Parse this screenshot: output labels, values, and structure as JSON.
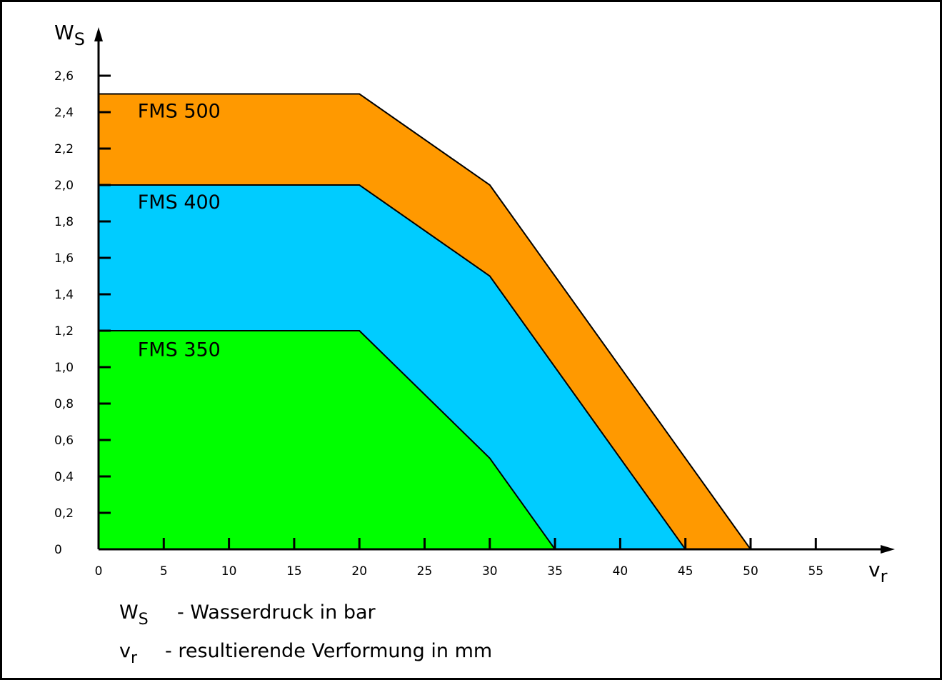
{
  "chart_data": {
    "type": "area",
    "x_axis": {
      "label": "v",
      "label_sub": "r",
      "range": [
        0,
        60
      ],
      "ticks": [
        0,
        5,
        10,
        15,
        20,
        25,
        30,
        35,
        40,
        45,
        50,
        55
      ]
    },
    "y_axis": {
      "label": "W",
      "label_sub": "S",
      "range": [
        0,
        2.7
      ],
      "ticks": [
        "0",
        "0,2",
        "0,4",
        "0,6",
        "0,8",
        "1,0",
        "1,2",
        "1,4",
        "1,6",
        "1,8",
        "2,0",
        "2,2",
        "2,4",
        "2,6"
      ],
      "tick_values": [
        0,
        0.2,
        0.4,
        0.6,
        0.8,
        1.0,
        1.2,
        1.4,
        1.6,
        1.8,
        2.0,
        2.2,
        2.4,
        2.6
      ]
    },
    "grid": false,
    "series": [
      {
        "name": "FMS 500",
        "color": "#ff9900",
        "points": [
          [
            0,
            2.5
          ],
          [
            20,
            2.5
          ],
          [
            30,
            2.0
          ],
          [
            50,
            0
          ]
        ],
        "label_at": [
          3,
          2.37
        ]
      },
      {
        "name": "FMS 400",
        "color": "#00ccff",
        "points": [
          [
            0,
            2.0
          ],
          [
            20,
            2.0
          ],
          [
            30,
            1.5
          ],
          [
            45,
            0
          ]
        ],
        "label_at": [
          3,
          1.87
        ]
      },
      {
        "name": "FMS 350",
        "color": "#00ff00",
        "points": [
          [
            0,
            1.2
          ],
          [
            20,
            1.2
          ],
          [
            30,
            0.5
          ],
          [
            35,
            0
          ]
        ],
        "label_at": [
          3,
          1.06
        ]
      }
    ]
  },
  "legend": [
    {
      "symbol": "W",
      "sub": "S",
      "text": "- Wasserdruck in bar"
    },
    {
      "symbol": "v",
      "sub": "r",
      "text": "- resultierende Verformung in mm"
    }
  ]
}
